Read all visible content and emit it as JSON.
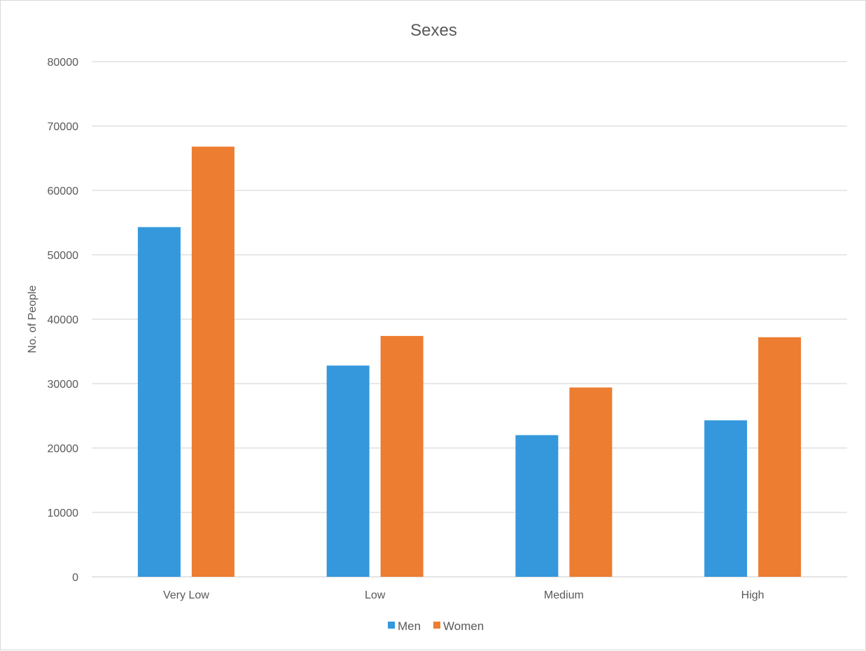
{
  "chart_data": {
    "type": "bar",
    "title": "Sexes",
    "xlabel": "",
    "ylabel": "No. of People",
    "categories": [
      "Very Low",
      "Low",
      "Medium",
      "High"
    ],
    "series": [
      {
        "name": "Men",
        "values": [
          54300,
          32800,
          22000,
          24300
        ]
      },
      {
        "name": "Women",
        "values": [
          66800,
          37400,
          29400,
          37200
        ]
      }
    ],
    "ylim": [
      0,
      80000
    ],
    "yticks": [
      "0",
      "10000",
      "20000",
      "30000",
      "40000",
      "50000",
      "60000",
      "70000",
      "80000"
    ],
    "grid": true,
    "legend_position": "bottom"
  },
  "colors": {
    "Men": "#3598dc",
    "Women": "#ed7d31",
    "grid": "#d9d9d9",
    "text": "#595959"
  }
}
